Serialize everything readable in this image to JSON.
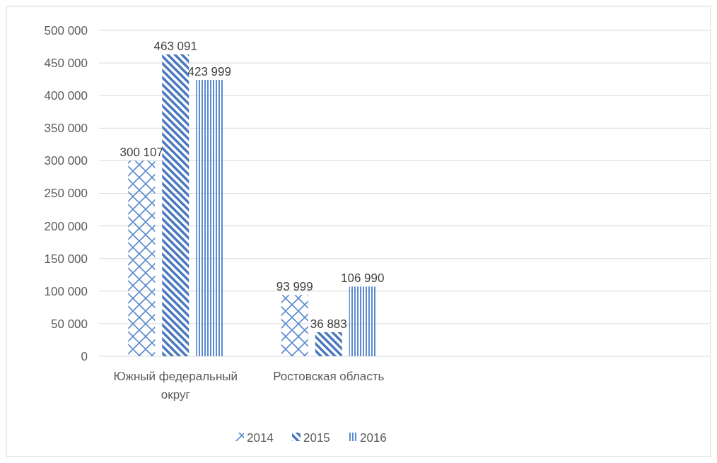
{
  "chart_data": {
    "type": "bar",
    "categories": [
      "Южный федеральный округ",
      "Ростовская область",
      null,
      null
    ],
    "series": [
      {
        "name": "2014",
        "color": "#5b8bd0",
        "values": [
          300107,
          93999,
          null,
          null
        ],
        "value_labels": [
          "300 107",
          "93 999",
          null,
          null
        ]
      },
      {
        "name": "2015",
        "color": "#4a78bf",
        "values": [
          463091,
          36883,
          null,
          null
        ],
        "value_labels": [
          "463 091",
          "36 883",
          null,
          null
        ]
      },
      {
        "name": "2016",
        "color": "#5b8bd0",
        "values": [
          423999,
          106990,
          null,
          null
        ],
        "value_labels": [
          "423 999",
          "106 990",
          null,
          null
        ]
      }
    ],
    "ylim": [
      0,
      500000
    ],
    "yticks": [
      {
        "value": 0,
        "label": "0"
      },
      {
        "value": 50000,
        "label": "50 000"
      },
      {
        "value": 100000,
        "label": "100 000"
      },
      {
        "value": 150000,
        "label": "150 000"
      },
      {
        "value": 200000,
        "label": "200 000"
      },
      {
        "value": 250000,
        "label": "250 000"
      },
      {
        "value": 300000,
        "label": "300 000"
      },
      {
        "value": 350000,
        "label": "350 000"
      },
      {
        "value": 400000,
        "label": "400 000"
      },
      {
        "value": 450000,
        "label": "450 000"
      },
      {
        "value": 500000,
        "label": "500 000"
      }
    ],
    "grid": "y",
    "legend": "bottom"
  }
}
